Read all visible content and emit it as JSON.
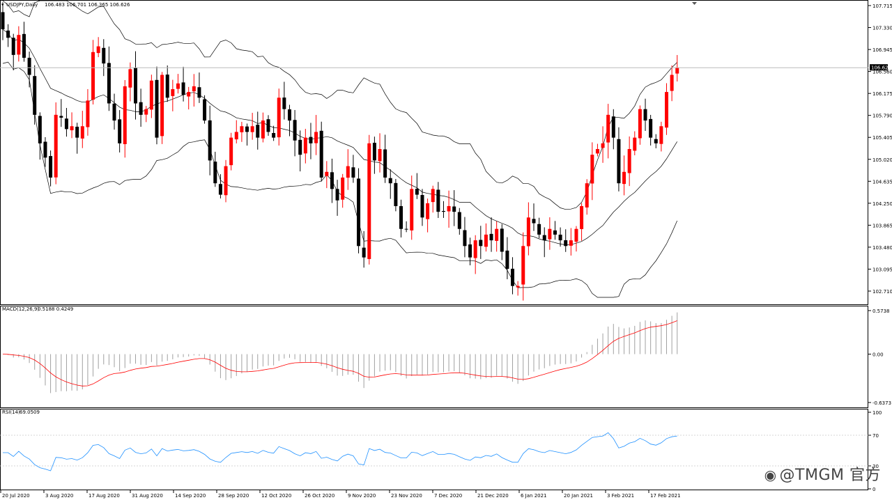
{
  "header": {
    "symbol_line": "USDJPY,Daily",
    "ohlc": "106.483 106.701 106.365 106.626"
  },
  "watermark": {
    "icon": "weibo-icon",
    "text": "@TMGM 官方"
  },
  "colors": {
    "bull": "#ff0000",
    "bear": "#000000",
    "band": "#000000",
    "signal": "#ff0000",
    "rsi": "#1e90ff",
    "hist": "#a0a0a0"
  },
  "chart_data": [
    {
      "type": "candlestick",
      "title": "USDJPY,Daily",
      "current_price": "106.626",
      "y_ticks": [
        "107.715",
        "107.330",
        "106.945",
        "106.560",
        "106.175",
        "105.790",
        "105.405",
        "105.020",
        "104.635",
        "104.250",
        "103.865",
        "103.480",
        "103.095",
        "102.710"
      ],
      "ylim": [
        102.62,
        107.8
      ],
      "x_ticks": [
        "20 Jul 2020",
        "3 Aug 2020",
        "17 Aug 2020",
        "31 Aug 2020",
        "14 Sep 2020",
        "28 Sep 2020",
        "12 Oct 2020",
        "26 Oct 2020",
        "9 Nov 2020",
        "23 Nov 2020",
        "7 Dec 2020",
        "21 Dec 2020",
        "6 Jan 2021",
        "20 Jan 2021",
        "3 Feb 2021",
        "17 Feb 2021"
      ],
      "closes": [
        107.3,
        107.15,
        106.85,
        107.2,
        106.8,
        106.5,
        105.8,
        105.3,
        105.05,
        104.7,
        105.8,
        105.75,
        105.55,
        105.6,
        105.4,
        105.6,
        106.05,
        106.9,
        107.0,
        106.7,
        106.0,
        105.7,
        105.3,
        106.3,
        106.6,
        106.0,
        105.8,
        105.9,
        106.4,
        105.4,
        106.5,
        106.1,
        106.25,
        106.35,
        106.15,
        106.2,
        106.3,
        106.1,
        105.7,
        105.0,
        104.6,
        104.4,
        104.9,
        105.4,
        105.5,
        105.6,
        105.5,
        105.6,
        105.4,
        105.7,
        105.5,
        105.4,
        106.1,
        105.9,
        105.7,
        105.35,
        105.1,
        105.4,
        105.3,
        105.5,
        104.7,
        104.8,
        104.5,
        104.3,
        104.7,
        104.9,
        104.7,
        103.5,
        103.3,
        105.3,
        105.0,
        105.2,
        104.7,
        104.6,
        104.2,
        103.8,
        103.8,
        104.5,
        104.4,
        104.0,
        104.25,
        104.5,
        104.1,
        104.1,
        104.2,
        104.1,
        103.8,
        103.5,
        103.3,
        103.6,
        103.5,
        103.7,
        103.6,
        103.8,
        103.4,
        103.1,
        102.8,
        102.8,
        103.5,
        104.0,
        103.9,
        103.7,
        103.6,
        103.8,
        103.7,
        103.6,
        103.5,
        103.6,
        103.8,
        104.2,
        104.6,
        105.1,
        105.2,
        105.3,
        105.8,
        105.4,
        104.6,
        104.8,
        105.2,
        105.4,
        105.9,
        105.7,
        105.4,
        105.3,
        105.6,
        106.2,
        106.5,
        106.63
      ],
      "indicators": [
        {
          "name": "MACD(12,26,9)",
          "values": "0.5188 0.4249",
          "y_ticks": [
            "0.5738",
            "0.00",
            "-0.6373"
          ],
          "ylim": [
            -0.6373,
            0.5738
          ]
        },
        {
          "name": "RSI(14)",
          "values": "69.0509",
          "y_ticks": [
            "100",
            "70",
            "30",
            "0"
          ],
          "ylim": [
            0,
            100
          ]
        }
      ]
    }
  ]
}
